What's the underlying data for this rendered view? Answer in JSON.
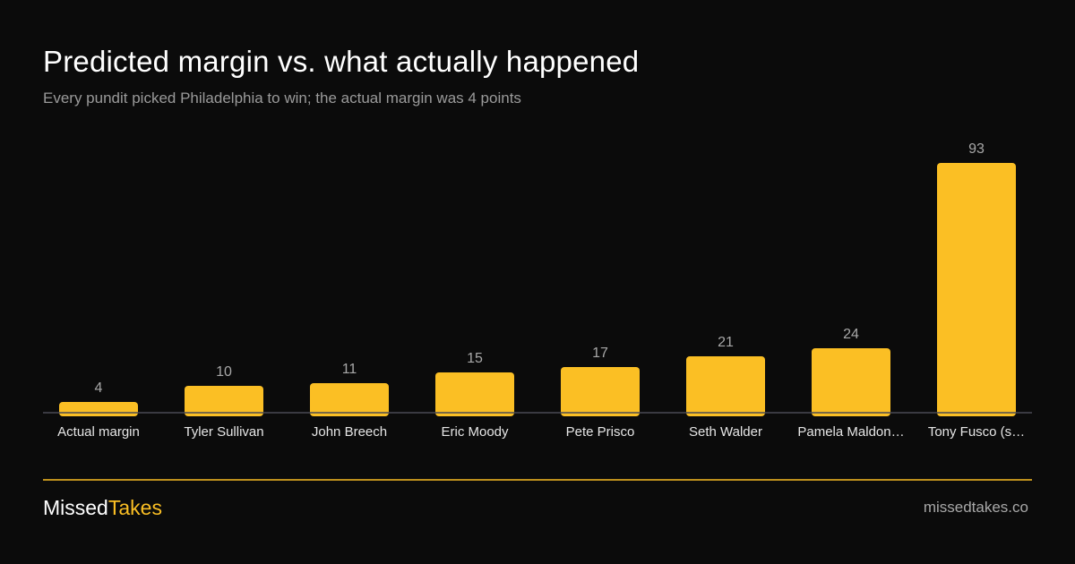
{
  "header": {
    "title": "Predicted margin vs. what actually happened",
    "subtitle": "Every pundit picked Philadelphia to win; the actual margin was 4 points"
  },
  "footer": {
    "brand_part1": "Missed",
    "brand_part2": "Takes",
    "site": "missedtakes.co"
  },
  "colors": {
    "background": "#0b0b0b",
    "bar": "#fbbf24",
    "accent": "#fbbf24",
    "axis": "#4a4a55"
  },
  "chart_data": {
    "type": "bar",
    "categories": [
      "Actual margin",
      "Tyler Sullivan",
      "John Breech",
      "Eric Moody",
      "Pete Prisco",
      "Seth Walder",
      "Pamela Maldon…",
      "Tony Fusco (s…"
    ],
    "values": [
      4,
      10,
      11,
      15,
      17,
      21,
      24,
      93
    ],
    "data_labels": [
      "4",
      "10",
      "11",
      "15",
      "17",
      "21",
      "24",
      "93"
    ],
    "ylim": [
      0,
      93
    ],
    "grid": false,
    "legend": "none"
  }
}
